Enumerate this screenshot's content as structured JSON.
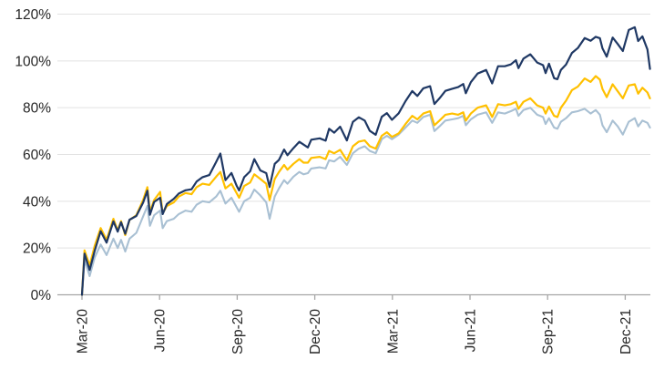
{
  "figure": {
    "background": "#ffffff",
    "title": "",
    "legend": "none"
  },
  "chart_data": {
    "type": "line",
    "title": "",
    "xlabel": "",
    "ylabel": "",
    "ylim": [
      0,
      120
    ],
    "grid": "horizontal",
    "y_tick_labels": [
      "0%",
      "20%",
      "40%",
      "60%",
      "80%",
      "100%",
      "120%"
    ],
    "y_tick_values": [
      0,
      20,
      40,
      60,
      80,
      100,
      120
    ],
    "x_tick_labels": [
      "Mar-20",
      "Jun-20",
      "Sep-20",
      "Dec-20",
      "Mar-21",
      "Jun-21",
      "Sep-21",
      "Dec-21"
    ],
    "x_days": [
      0,
      3,
      9,
      15,
      22,
      29,
      37,
      42,
      46,
      51,
      56,
      64,
      72,
      77,
      80,
      85,
      92,
      95,
      100,
      108,
      114,
      122,
      129,
      135,
      142,
      150,
      158,
      163,
      169,
      176,
      182,
      185,
      191,
      198,
      203,
      210,
      217,
      221,
      227,
      232,
      238,
      242,
      249,
      256,
      261,
      266,
      270,
      280,
      287,
      291,
      297,
      304,
      312,
      319,
      326,
      333,
      339,
      346,
      353,
      359,
      365,
      373,
      381,
      389,
      395,
      402,
      410,
      415,
      421,
      428,
      436,
      443,
      449,
      452,
      458,
      466,
      476,
      483,
      490,
      498,
      505,
      511,
      514,
      520,
      528,
      536,
      543,
      546,
      550,
      556,
      560,
      564,
      570,
      577,
      584,
      592,
      599,
      605,
      610,
      613,
      618,
      625,
      631,
      637,
      644,
      651,
      655,
      660,
      666,
      669
    ],
    "series": [
      {
        "name": "series-light-blue",
        "color": "#A9C0D3",
        "stroke_width": 2.1,
        "values": [
          0,
          15.0,
          8.0,
          16.0,
          21.5,
          17.0,
          24.0,
          20.0,
          23.5,
          18.5,
          24.0,
          26.5,
          33.5,
          38.0,
          29.5,
          34.0,
          36.0,
          28.5,
          31.5,
          32.5,
          34.5,
          36.0,
          35.5,
          38.5,
          40.0,
          39.5,
          42.0,
          44.5,
          39.0,
          41.5,
          37.5,
          35.5,
          40.0,
          41.5,
          45.0,
          42.5,
          39.5,
          32.5,
          42.0,
          45.5,
          49.0,
          47.5,
          50.5,
          52.5,
          51.5,
          52.0,
          54.0,
          54.5,
          54.0,
          57.5,
          57.0,
          59.0,
          55.5,
          60.5,
          62.5,
          63.5,
          61.5,
          60.5,
          66.5,
          68.0,
          66.5,
          68.5,
          71.5,
          74.5,
          73.5,
          76.0,
          77.0,
          70.0,
          72.0,
          74.5,
          75.0,
          75.5,
          76.5,
          72.5,
          75.0,
          77.0,
          78.0,
          73.5,
          78.0,
          77.5,
          78.5,
          79.5,
          76.5,
          79.0,
          80.0,
          77.0,
          76.0,
          73.0,
          75.5,
          71.5,
          71.0,
          74.0,
          75.5,
          78.0,
          78.5,
          79.5,
          77.5,
          79.0,
          77.0,
          72.5,
          69.5,
          74.5,
          72.0,
          68.5,
          74.0,
          75.5,
          72.0,
          74.5,
          73.5,
          71.5
        ]
      },
      {
        "name": "series-yellow",
        "color": "#FFC000",
        "stroke_width": 2.2,
        "values": [
          0,
          19.0,
          12.5,
          21.0,
          28.5,
          23.5,
          32.5,
          27.5,
          31.5,
          25.5,
          32.0,
          34.0,
          40.5,
          46.0,
          35.5,
          40.5,
          44.0,
          34.8,
          38.0,
          39.5,
          42.0,
          43.5,
          43.0,
          46.0,
          47.5,
          47.0,
          50.5,
          52.5,
          45.5,
          47.5,
          43.5,
          41.5,
          46.5,
          48.0,
          51.5,
          49.5,
          47.5,
          40.5,
          49.5,
          52.5,
          55.5,
          53.5,
          56.0,
          58.0,
          56.5,
          56.5,
          58.5,
          59.0,
          58.0,
          61.5,
          60.5,
          62.0,
          57.5,
          63.5,
          65.5,
          66.0,
          63.5,
          62.5,
          68.0,
          69.5,
          67.5,
          69.0,
          73.0,
          76.5,
          75.0,
          77.5,
          78.5,
          72.5,
          74.5,
          77.0,
          77.5,
          77.0,
          78.0,
          74.5,
          77.5,
          80.0,
          81.0,
          76.0,
          81.5,
          81.0,
          81.5,
          82.5,
          79.5,
          82.5,
          84.0,
          81.0,
          80.0,
          77.5,
          80.5,
          76.5,
          76.0,
          80.0,
          83.0,
          87.5,
          89.0,
          92.5,
          91.0,
          93.5,
          92.0,
          88.0,
          84.5,
          90.0,
          87.0,
          84.0,
          89.5,
          90.0,
          86.0,
          88.5,
          86.5,
          84.0
        ]
      },
      {
        "name": "series-dark-navy",
        "color": "#1F3864",
        "stroke_width": 2.2,
        "values": [
          0,
          17.6,
          10.6,
          18.9,
          27.2,
          22.3,
          31.4,
          27.0,
          31.0,
          26.1,
          32.1,
          33.7,
          39.4,
          44.5,
          34.2,
          39.7,
          41.5,
          34.5,
          38.8,
          41.0,
          43.3,
          44.7,
          45.1,
          48.4,
          50.3,
          51.2,
          56.8,
          60.4,
          49.0,
          52.1,
          46.7,
          44.6,
          50.3,
          52.8,
          58.0,
          53.2,
          52.0,
          46.1,
          56.0,
          57.7,
          62.1,
          59.7,
          62.7,
          65.4,
          64.2,
          63.0,
          66.3,
          66.9,
          65.9,
          71.0,
          69.3,
          71.9,
          66.0,
          73.9,
          75.9,
          74.5,
          70.1,
          68.4,
          76.1,
          77.7,
          74.8,
          77.6,
          82.8,
          87.1,
          85.0,
          88.3,
          89.2,
          81.6,
          84.0,
          87.2,
          88.1,
          88.8,
          90.1,
          86.2,
          90.9,
          94.6,
          96.1,
          90.4,
          97.7,
          97.7,
          98.5,
          100.3,
          96.9,
          101.0,
          102.8,
          99.3,
          98.2,
          94.8,
          98.8,
          92.6,
          92.2,
          96.1,
          98.4,
          103.4,
          105.5,
          109.8,
          108.6,
          110.3,
          109.7,
          105.4,
          101.8,
          110.0,
          107.2,
          104.2,
          113.2,
          114.4,
          108.5,
          110.5,
          104.9,
          96.6
        ]
      }
    ],
    "colors": {
      "gridline": "#E2E2E2",
      "axis_line": "#A6A6A6",
      "tick_mark": "#A6A6A6",
      "label_text": "#262626"
    }
  }
}
